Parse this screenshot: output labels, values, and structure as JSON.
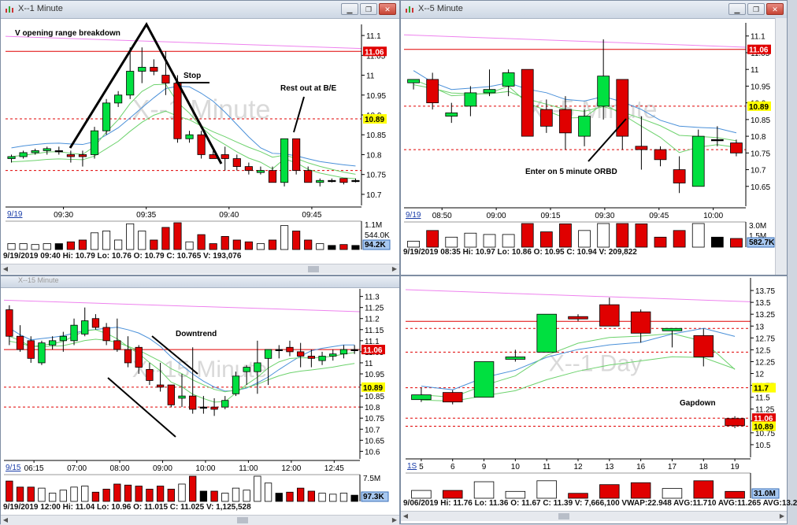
{
  "colors": {
    "up": "#00e040",
    "down": "#e00000",
    "neutral": "#ffffff",
    "sma": "#4a90d9",
    "ema": "#6dd26d",
    "magenta": "#ee82ee",
    "hline": "#e00000",
    "accent_label": "#ffff00",
    "blue_label": "#3399ff"
  },
  "w1": {
    "title": "X--1 Minute",
    "watermark": "X--1 Minute",
    "chart_data": {
      "type": "candlestick",
      "title": "X--1 Minute",
      "date_tag": "9/19",
      "x_labels": [
        "09:30",
        "09:35",
        "09:40",
        "09:45"
      ],
      "y_ticks": [
        "11.1",
        "11.05",
        "11",
        "10.95",
        "10.9",
        "10.85",
        "10.8",
        "10.75",
        "10.7"
      ],
      "ylim": [
        10.68,
        11.12
      ],
      "price_labels": [
        {
          "text": "11.06",
          "value": 11.06,
          "style": "red"
        },
        {
          "text": "10.89",
          "value": 10.89,
          "style": "yellow"
        }
      ],
      "hlines": [
        11.06,
        10.89,
        10.76
      ],
      "candles": [
        [
          10.79,
          10.8,
          10.78,
          10.795
        ],
        [
          10.795,
          10.81,
          10.79,
          10.805
        ],
        [
          10.805,
          10.815,
          10.8,
          10.81
        ],
        [
          10.81,
          10.82,
          10.8,
          10.815
        ],
        [
          10.81,
          10.82,
          10.8,
          10.81
        ],
        [
          10.8,
          10.81,
          10.78,
          10.795
        ],
        [
          10.8,
          10.81,
          10.77,
          10.795
        ],
        [
          10.8,
          10.87,
          10.79,
          10.86
        ],
        [
          10.86,
          10.94,
          10.85,
          10.93
        ],
        [
          10.93,
          10.96,
          10.92,
          10.95
        ],
        [
          10.95,
          11.07,
          10.94,
          11.01
        ],
        [
          11.01,
          11.07,
          10.98,
          11.02
        ],
        [
          11.02,
          11.04,
          11.0,
          11.01
        ],
        [
          11.0,
          11.06,
          10.95,
          10.98
        ],
        [
          10.98,
          11.0,
          10.83,
          10.84
        ],
        [
          10.84,
          10.86,
          10.83,
          10.85
        ],
        [
          10.85,
          10.86,
          10.79,
          10.8
        ],
        [
          10.8,
          10.81,
          10.79,
          10.79
        ],
        [
          10.8,
          10.82,
          10.76,
          10.79
        ],
        [
          10.79,
          10.8,
          10.76,
          10.77
        ],
        [
          10.77,
          10.78,
          10.75,
          10.76
        ],
        [
          10.755,
          10.77,
          10.75,
          10.76
        ],
        [
          10.76,
          10.77,
          10.73,
          10.73
        ],
        [
          10.73,
          10.84,
          10.72,
          10.84
        ],
        [
          10.84,
          10.84,
          10.75,
          10.76
        ],
        [
          10.76,
          10.77,
          10.73,
          10.73
        ],
        [
          10.73,
          10.74,
          10.72,
          10.735
        ],
        [
          10.735,
          10.74,
          10.73,
          10.735
        ],
        [
          10.74,
          10.74,
          10.725,
          10.73
        ],
        [
          10.735,
          10.74,
          10.73,
          10.735
        ]
      ],
      "volume_labels": [
        "1.1M",
        "544.0K",
        "94.2K"
      ]
    },
    "annotations": {
      "a1": "V opening range breakdown",
      "a2": "Stop",
      "a3": "Rest out at B/E"
    },
    "status": "9/19/2019 09:40  Hi: 10.79  Lo: 10.76  O: 10.79  C: 10.765  V: 193,076"
  },
  "w2": {
    "title": "X--5 Minute",
    "watermark": "X--5 Minute",
    "chart_data": {
      "type": "candlestick",
      "title": "X--5 Minute",
      "date_tag": "9/19",
      "x_labels": [
        "08:50",
        "09:00",
        "09:15",
        "09:30",
        "09:45",
        "10:00"
      ],
      "y_ticks": [
        "11.1",
        "11.05",
        "11",
        "10.95",
        "10.9",
        "10.85",
        "10.8",
        "10.75",
        "10.7",
        "10.65"
      ],
      "ylim": [
        10.6,
        11.13
      ],
      "price_labels": [
        {
          "text": "11.06",
          "value": 11.06,
          "style": "red"
        },
        {
          "text": "10.89",
          "value": 10.89,
          "style": "yellow"
        }
      ],
      "hlines": [
        11.06,
        10.89,
        10.76
      ],
      "candles": [
        [
          10.96,
          10.97,
          10.94,
          10.97
        ],
        [
          10.97,
          10.99,
          10.88,
          10.9
        ],
        [
          10.86,
          10.9,
          10.84,
          10.87
        ],
        [
          10.89,
          10.95,
          10.86,
          10.93
        ],
        [
          10.93,
          11.0,
          10.92,
          10.94
        ],
        [
          10.95,
          11.0,
          10.92,
          10.99
        ],
        [
          11.0,
          11.0,
          10.8,
          10.8
        ],
        [
          10.88,
          10.91,
          10.81,
          10.83
        ],
        [
          10.88,
          10.92,
          10.76,
          10.81
        ],
        [
          10.8,
          10.88,
          10.77,
          10.86
        ],
        [
          10.89,
          11.09,
          10.85,
          10.98
        ],
        [
          10.97,
          10.97,
          10.76,
          10.8
        ],
        [
          10.77,
          10.86,
          10.7,
          10.76
        ],
        [
          10.76,
          10.77,
          10.71,
          10.73
        ],
        [
          10.7,
          10.74,
          10.63,
          10.66
        ],
        [
          10.65,
          10.82,
          10.65,
          10.8
        ],
        [
          10.79,
          10.83,
          10.77,
          10.79
        ],
        [
          10.78,
          10.79,
          10.74,
          10.75
        ]
      ],
      "volume_labels": [
        "3.0M",
        "1.5M",
        "582.7K"
      ]
    },
    "annotations": {
      "a1": "Enter on 5 minute ORBD"
    },
    "status": "9/19/2019 08:35  Hi: 10.97  Lo: 10.86  O: 10.95  C: 10.94  V: 209,822"
  },
  "w3": {
    "title": "X--15 Minute",
    "watermark": "X--15 Minute",
    "chart_data": {
      "type": "candlestick",
      "title": "X--15 Minute",
      "date_tag": "9/15",
      "x_labels": [
        "06:15",
        "07:00",
        "08:00",
        "09:00",
        "10:00",
        "11:00",
        "12:00",
        "12:45"
      ],
      "y_ticks": [
        "11.3",
        "11.25",
        "11.2",
        "11.15",
        "11.1",
        "11.05",
        "11",
        "10.95",
        "10.9",
        "10.85",
        "10.8",
        "10.75",
        "10.7",
        "10.65",
        "10.6"
      ],
      "ylim": [
        10.58,
        11.32
      ],
      "price_labels": [
        {
          "text": "11.06",
          "value": 11.06,
          "style": "red"
        },
        {
          "text": "10.89",
          "value": 10.89,
          "style": "yellow"
        }
      ],
      "hlines": [
        11.06,
        10.89,
        10.8
      ],
      "candles": [
        [
          11.24,
          11.26,
          11.08,
          11.12
        ],
        [
          11.12,
          11.17,
          11.05,
          11.06
        ],
        [
          11.1,
          11.12,
          11.0,
          11.02
        ],
        [
          11.0,
          11.1,
          10.99,
          11.09
        ],
        [
          11.08,
          11.12,
          11.06,
          11.1
        ],
        [
          11.1,
          11.14,
          11.05,
          11.12
        ],
        [
          11.1,
          11.2,
          11.08,
          11.17
        ],
        [
          11.13,
          11.25,
          11.12,
          11.19
        ],
        [
          11.2,
          11.22,
          11.15,
          11.16
        ],
        [
          11.16,
          11.18,
          11.08,
          11.1
        ],
        [
          11.1,
          11.2,
          11.05,
          11.06
        ],
        [
          11.06,
          11.12,
          10.98,
          11.0
        ],
        [
          11.07,
          11.08,
          10.95,
          10.98
        ],
        [
          10.97,
          11.0,
          10.9,
          10.92
        ],
        [
          10.9,
          11.0,
          10.87,
          10.89
        ],
        [
          10.9,
          10.9,
          10.8,
          10.81
        ],
        [
          10.84,
          10.95,
          10.8,
          10.85
        ],
        [
          10.85,
          11.07,
          10.77,
          10.79
        ],
        [
          10.8,
          10.85,
          10.77,
          10.8
        ],
        [
          10.8,
          10.84,
          10.76,
          10.79
        ],
        [
          10.8,
          10.85,
          10.79,
          10.83
        ],
        [
          10.86,
          10.96,
          10.85,
          10.94
        ],
        [
          10.96,
          10.99,
          10.9,
          10.98
        ],
        [
          10.96,
          11.1,
          10.86,
          11.0
        ],
        [
          11.02,
          11.06,
          10.9,
          11.06
        ],
        [
          11.06,
          11.08,
          11.02,
          11.06
        ],
        [
          11.07,
          11.1,
          11.03,
          11.05
        ],
        [
          11.05,
          11.09,
          10.98,
          11.03
        ],
        [
          11.03,
          11.06,
          10.98,
          11.02
        ],
        [
          11.01,
          11.05,
          10.99,
          11.03
        ],
        [
          11.03,
          11.06,
          11.01,
          11.04
        ],
        [
          11.04,
          11.08,
          11.02,
          11.06
        ],
        [
          11.06,
          11.08,
          11.04,
          11.06
        ]
      ],
      "volume_labels": [
        "7.5M",
        "97.3K"
      ]
    },
    "annotations": {
      "a1": "Downtrend"
    },
    "status": "9/19/2019 12:00  Hi: 11.04  Lo: 10.96  O: 11.015  C: 11.025  V: 1,125,528"
  },
  "w4": {
    "title": "X--1 Day",
    "watermark": "X--1 Day",
    "chart_data": {
      "type": "candlestick",
      "title": "X--1 Day",
      "date_tag": "1S",
      "x_labels": [
        "5",
        "6",
        "9",
        "10",
        "11",
        "12",
        "13",
        "16",
        "17",
        "18",
        "19"
      ],
      "y_ticks": [
        "13.75",
        "13.5",
        "13.25",
        "13",
        "12.75",
        "12.5",
        "12.25",
        "12",
        "11.75",
        "11.5",
        "11.25",
        "11",
        "10.75",
        "10.5"
      ],
      "ylim": [
        10.3,
        13.95
      ],
      "price_labels": [
        {
          "text": "11.7",
          "value": 11.7,
          "style": "yellow"
        },
        {
          "text": "11.06",
          "value": 11.06,
          "style": "red"
        },
        {
          "text": "10.89",
          "value": 10.89,
          "style": "yellow"
        }
      ],
      "hlines": [
        13.1,
        12.95,
        12.45,
        11.7,
        11.06,
        10.89
      ],
      "candles": [
        [
          11.45,
          11.7,
          11.4,
          11.55
        ],
        [
          11.6,
          11.65,
          11.35,
          11.4
        ],
        [
          11.5,
          12.25,
          11.5,
          12.25
        ],
        [
          12.3,
          12.5,
          12.25,
          12.35
        ],
        [
          12.45,
          13.25,
          12.45,
          13.25
        ],
        [
          13.2,
          13.25,
          13.1,
          13.15
        ],
        [
          13.45,
          13.6,
          13.0,
          13.0
        ],
        [
          13.3,
          13.35,
          12.65,
          12.85
        ],
        [
          12.9,
          12.95,
          12.55,
          12.95
        ],
        [
          12.8,
          12.95,
          12.15,
          12.35
        ],
        [
          11.05,
          11.1,
          10.85,
          10.9
        ]
      ],
      "volume_labels": [
        "31.0M"
      ]
    },
    "annotations": {
      "a1": "Gapdown"
    },
    "status": "9/06/2019  Hi: 11.76  Lo: 11.36  O: 11.67  C: 11.39  V: 7,666,100  VWAP:22.948  AVG:11.710  AVG:11.265  AVG:13.2"
  }
}
